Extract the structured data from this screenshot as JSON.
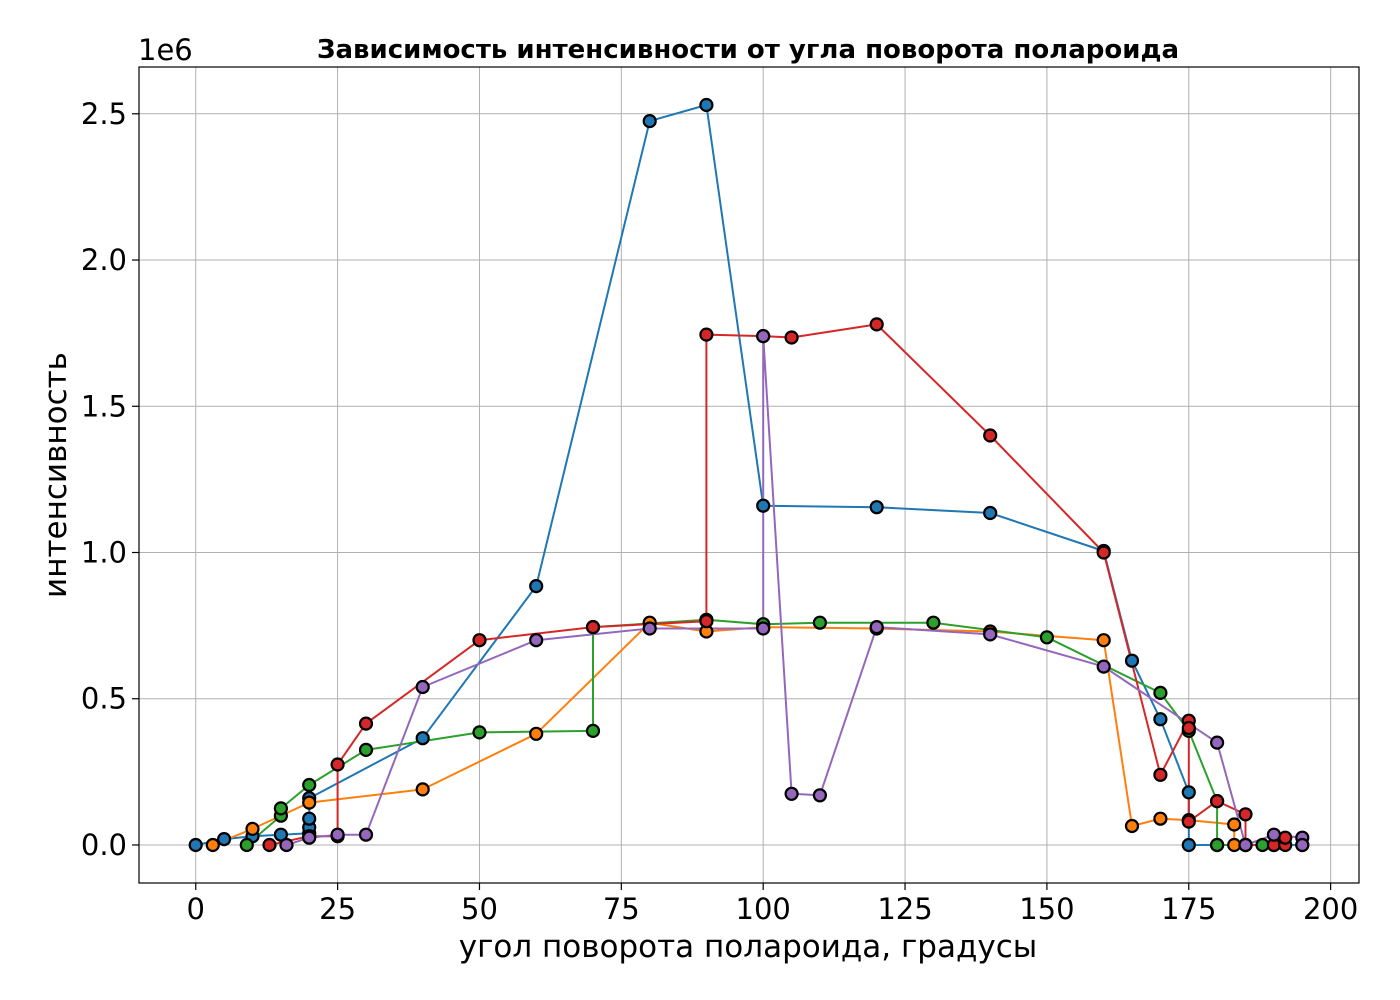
{
  "chart_data": {
    "type": "line",
    "title": "Зависимость интенсивности от угла поворота полароида",
    "xlabel": "угол поворота полароида, градусы",
    "ylabel": "интенсивность",
    "offset_text": "1e6",
    "xlim": [
      -10,
      205
    ],
    "ylim": [
      -0.13,
      2.66
    ],
    "y_scale_multiplier": 1000000,
    "x_ticks": [
      0,
      25,
      50,
      75,
      100,
      125,
      150,
      175,
      200
    ],
    "x_tick_labels": [
      "0",
      "25",
      "50",
      "75",
      "100",
      "125",
      "150",
      "175",
      "200"
    ],
    "y_ticks": [
      0.0,
      0.5,
      1.0,
      1.5,
      2.0,
      2.5
    ],
    "y_tick_labels": [
      "0.0",
      "0.5",
      "1.0",
      "1.5",
      "2.0",
      "2.5"
    ],
    "grid": true,
    "legend": "none",
    "marker": "circle",
    "series": [
      {
        "color": "#1f77b4",
        "points": [
          [
            0,
            0.0
          ],
          [
            5,
            0.02
          ],
          [
            10,
            0.03
          ],
          [
            15,
            0.035
          ],
          [
            20,
            0.04
          ],
          [
            20,
            0.06
          ],
          [
            20,
            0.09
          ],
          [
            20,
            0.16
          ],
          [
            40,
            0.365
          ],
          [
            60,
            0.885
          ],
          [
            80,
            2.475
          ],
          [
            90,
            2.53
          ],
          [
            100,
            1.16
          ],
          [
            120,
            1.155
          ],
          [
            140,
            1.135
          ],
          [
            160,
            1.005
          ],
          [
            165,
            0.63
          ],
          [
            170,
            0.43
          ],
          [
            175,
            0.18
          ],
          [
            175,
            0.0
          ],
          [
            180,
            0.0
          ],
          [
            185,
            0.0
          ],
          [
            190,
            0.0
          ],
          [
            195,
            0.0
          ]
        ]
      },
      {
        "color": "#ff7f0e",
        "points": [
          [
            3,
            0.0
          ],
          [
            10,
            0.055
          ],
          [
            20,
            0.145
          ],
          [
            40,
            0.19
          ],
          [
            60,
            0.38
          ],
          [
            80,
            0.76
          ],
          [
            90,
            0.73
          ],
          [
            100,
            0.745
          ],
          [
            120,
            0.74
          ],
          [
            140,
            0.73
          ],
          [
            160,
            0.7
          ],
          [
            165,
            0.065
          ],
          [
            170,
            0.09
          ],
          [
            175,
            0.085
          ],
          [
            183,
            0.07
          ],
          [
            183,
            0.0
          ],
          [
            185,
            0.0
          ]
        ]
      },
      {
        "color": "#2ca02c",
        "points": [
          [
            9,
            0.0
          ],
          [
            15,
            0.1
          ],
          [
            15,
            0.125
          ],
          [
            20,
            0.205
          ],
          [
            30,
            0.325
          ],
          [
            50,
            0.385
          ],
          [
            70,
            0.39
          ],
          [
            70,
            0.745
          ],
          [
            90,
            0.77
          ],
          [
            100,
            0.755
          ],
          [
            110,
            0.76
          ],
          [
            130,
            0.76
          ],
          [
            150,
            0.71
          ],
          [
            170,
            0.52
          ],
          [
            175,
            0.39
          ],
          [
            180,
            0.15
          ],
          [
            180,
            0.0
          ],
          [
            188,
            0.0
          ]
        ]
      },
      {
        "color": "#d62728",
        "points": [
          [
            13,
            0.0
          ],
          [
            20,
            0.03
          ],
          [
            25,
            0.03
          ],
          [
            25,
            0.275
          ],
          [
            30,
            0.415
          ],
          [
            50,
            0.7
          ],
          [
            70,
            0.745
          ],
          [
            90,
            0.765
          ],
          [
            90,
            1.745
          ],
          [
            100,
            1.74
          ],
          [
            105,
            1.735
          ],
          [
            120,
            1.78
          ],
          [
            140,
            1.4
          ],
          [
            160,
            1.0
          ],
          [
            170,
            0.24
          ],
          [
            175,
            0.425
          ],
          [
            175,
            0.4
          ],
          [
            175,
            0.08
          ],
          [
            180,
            0.15
          ],
          [
            185,
            0.105
          ],
          [
            185,
            0.0
          ],
          [
            190,
            0.0
          ],
          [
            192,
            0.0
          ],
          [
            192,
            0.025
          ]
        ]
      },
      {
        "color": "#9467bd",
        "points": [
          [
            16,
            0.0
          ],
          [
            20,
            0.025
          ],
          [
            25,
            0.035
          ],
          [
            30,
            0.035
          ],
          [
            40,
            0.54
          ],
          [
            60,
            0.7
          ],
          [
            80,
            0.74
          ],
          [
            100,
            0.74
          ],
          [
            100,
            1.74
          ],
          [
            105,
            0.175
          ],
          [
            110,
            0.17
          ],
          [
            120,
            0.745
          ],
          [
            140,
            0.72
          ],
          [
            160,
            0.61
          ],
          [
            180,
            0.35
          ],
          [
            185,
            0.0
          ],
          [
            190,
            0.035
          ],
          [
            195,
            0.025
          ],
          [
            195,
            0.0
          ]
        ]
      }
    ]
  }
}
